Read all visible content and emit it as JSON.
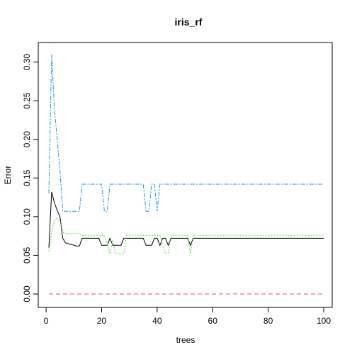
{
  "chart_data": {
    "type": "line",
    "title": "iris_rf",
    "xlabel": "trees",
    "ylabel": "Error",
    "xlim": [
      1,
      100
    ],
    "ylim": [
      0,
      0.3125
    ],
    "xticks": [
      0,
      20,
      40,
      60,
      80,
      100
    ],
    "yticks": [
      0.0,
      0.05,
      0.1,
      0.15,
      0.2,
      0.25,
      0.3
    ],
    "ytick_labels": [
      "0.00",
      "0.05",
      "0.10",
      "0.15",
      "0.20",
      "0.25",
      "0.30"
    ],
    "grid": false,
    "legend": "none",
    "series": [
      {
        "key": "oob",
        "color": "#000000",
        "dash": "",
        "points": [
          [
            1,
            0.06
          ],
          [
            2,
            0.132
          ],
          [
            3,
            0.118
          ],
          [
            4,
            0.108
          ],
          [
            5,
            0.1
          ],
          [
            6,
            0.072
          ],
          [
            7,
            0.066
          ],
          [
            9,
            0.064
          ],
          [
            10,
            0.063
          ],
          [
            11,
            0.062
          ],
          [
            12,
            0.062
          ],
          [
            13,
            0.072
          ],
          [
            19,
            0.072
          ],
          [
            20,
            0.063
          ],
          [
            22,
            0.063
          ],
          [
            23,
            0.072
          ],
          [
            24,
            0.063
          ],
          [
            26,
            0.063
          ],
          [
            27,
            0.063
          ],
          [
            28,
            0.072
          ],
          [
            35,
            0.072
          ],
          [
            36,
            0.063
          ],
          [
            38,
            0.063
          ],
          [
            39,
            0.072
          ],
          [
            40,
            0.072
          ],
          [
            41,
            0.063
          ],
          [
            42,
            0.072
          ],
          [
            43,
            0.072
          ],
          [
            44,
            0.063
          ],
          [
            45,
            0.072
          ],
          [
            51,
            0.072
          ],
          [
            52,
            0.063
          ],
          [
            53,
            0.072
          ],
          [
            100,
            0.072
          ]
        ]
      },
      {
        "key": "setosa",
        "color": "#DF536B",
        "dash": "6,4",
        "points": [
          [
            1,
            0.0
          ],
          [
            100,
            0.0
          ]
        ]
      },
      {
        "key": "versicolor",
        "color": "#61D04F",
        "dash": "2,2",
        "points": [
          [
            1,
            0.055
          ],
          [
            2,
            0.08
          ],
          [
            3,
            0.095
          ],
          [
            4,
            0.098
          ],
          [
            5,
            0.095
          ],
          [
            6,
            0.08
          ],
          [
            7,
            0.078
          ],
          [
            12,
            0.078
          ],
          [
            13,
            0.076
          ],
          [
            21,
            0.076
          ],
          [
            22,
            0.065
          ],
          [
            23,
            0.052
          ],
          [
            24,
            0.07
          ],
          [
            25,
            0.052
          ],
          [
            28,
            0.052
          ],
          [
            29,
            0.076
          ],
          [
            41,
            0.076
          ],
          [
            42,
            0.062
          ],
          [
            43,
            0.052
          ],
          [
            44,
            0.052
          ],
          [
            45,
            0.076
          ],
          [
            51,
            0.076
          ],
          [
            52,
            0.052
          ],
          [
            53,
            0.076
          ],
          [
            100,
            0.076
          ]
        ]
      },
      {
        "key": "virginica",
        "color": "#2297E6",
        "dash": "6,2,2,2",
        "points": [
          [
            1,
            0.13
          ],
          [
            2,
            0.31
          ],
          [
            3,
            0.24
          ],
          [
            4,
            0.2
          ],
          [
            5,
            0.16
          ],
          [
            6,
            0.107
          ],
          [
            12,
            0.107
          ],
          [
            13,
            0.142
          ],
          [
            20,
            0.142
          ],
          [
            21,
            0.107
          ],
          [
            22,
            0.107
          ],
          [
            23,
            0.142
          ],
          [
            35,
            0.142
          ],
          [
            36,
            0.107
          ],
          [
            37,
            0.107
          ],
          [
            38,
            0.142
          ],
          [
            39,
            0.142
          ],
          [
            40,
            0.107
          ],
          [
            41,
            0.142
          ],
          [
            100,
            0.142
          ]
        ]
      }
    ]
  }
}
